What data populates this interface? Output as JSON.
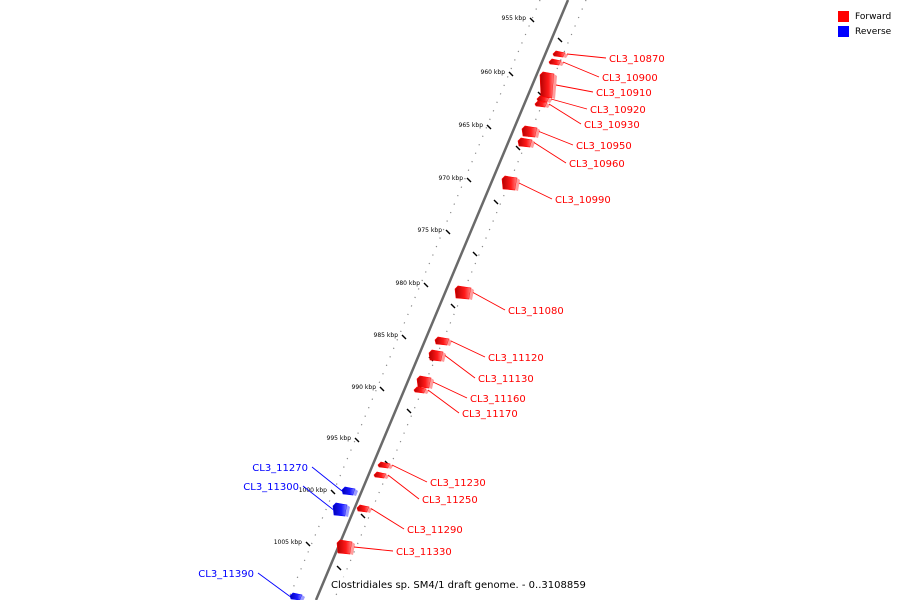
{
  "legend": {
    "forward_label": "Forward",
    "reverse_label": "Reverse",
    "forward_color": "#ff0000",
    "reverse_color": "#0000ff"
  },
  "caption": "Clostridiales sp. SM4/1 draft genome. - 0..3108859",
  "ticks": [
    "955 kbp",
    "960 kbp",
    "965 kbp",
    "970 kbp",
    "975 kbp",
    "980 kbp",
    "985 kbp",
    "990 kbp",
    "995 kbp",
    "1000 kbp",
    "1005 kbp"
  ],
  "genes": [
    {
      "label": "CL3_10870",
      "strand": "forward"
    },
    {
      "label": "CL3_10900",
      "strand": "forward"
    },
    {
      "label": "CL3_10910",
      "strand": "forward"
    },
    {
      "label": "CL3_10920",
      "strand": "forward"
    },
    {
      "label": "CL3_10930",
      "strand": "forward"
    },
    {
      "label": "CL3_10950",
      "strand": "forward"
    },
    {
      "label": "CL3_10960",
      "strand": "forward"
    },
    {
      "label": "CL3_10990",
      "strand": "forward"
    },
    {
      "label": "CL3_11080",
      "strand": "forward"
    },
    {
      "label": "CL3_11120",
      "strand": "forward"
    },
    {
      "label": "CL3_11130",
      "strand": "forward"
    },
    {
      "label": "CL3_11160",
      "strand": "forward"
    },
    {
      "label": "CL3_11170",
      "strand": "forward"
    },
    {
      "label": "CL3_11230",
      "strand": "forward"
    },
    {
      "label": "CL3_11250",
      "strand": "forward"
    },
    {
      "label": "CL3_11290",
      "strand": "forward"
    },
    {
      "label": "CL3_11330",
      "strand": "forward"
    },
    {
      "label": "CL3_11270",
      "strand": "reverse"
    },
    {
      "label": "CL3_11300",
      "strand": "reverse"
    },
    {
      "label": "CL3_11390",
      "strand": "reverse"
    }
  ]
}
